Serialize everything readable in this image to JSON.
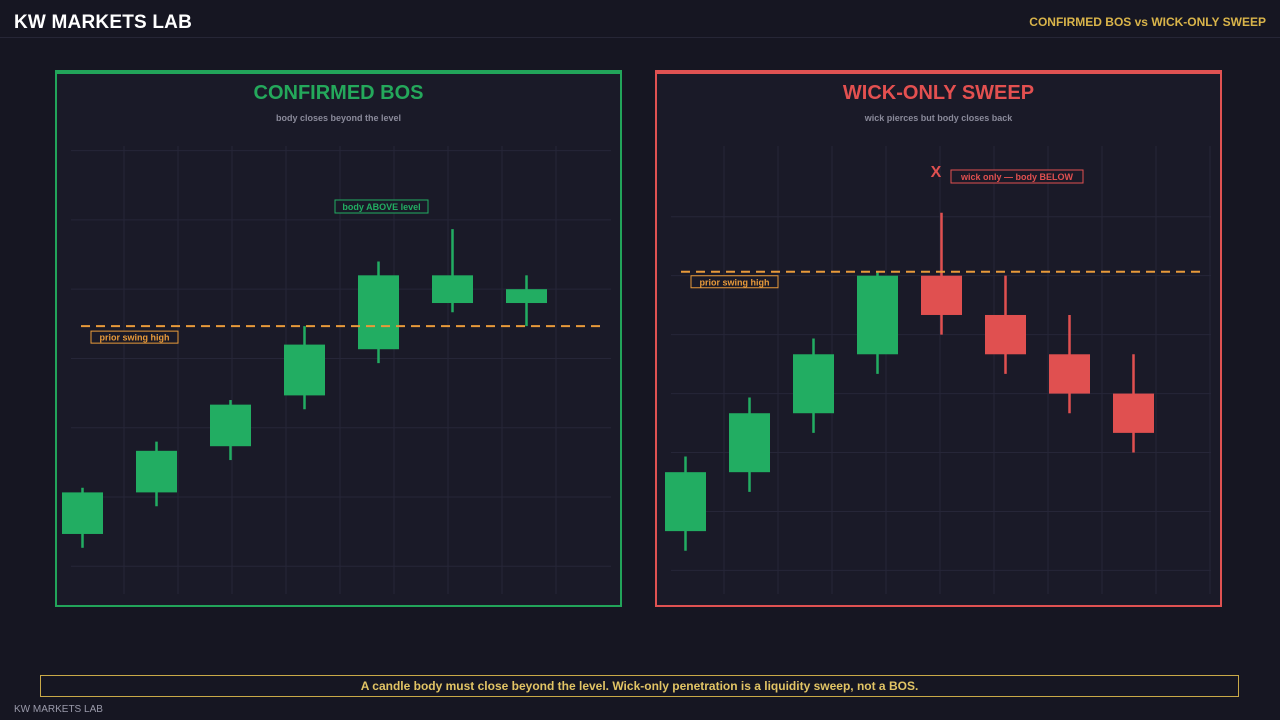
{
  "header": {
    "brand": "KW MARKETS LAB",
    "right_title": "CONFIRMED BOS vs WICK-ONLY SWEEP"
  },
  "colors": {
    "bull": "#22ad62",
    "bear": "#e05050",
    "level": "#e89a3a",
    "grid": "#262638",
    "background": "#161622"
  },
  "chart_data": [
    {
      "type": "candlestick",
      "title": "CONFIRMED BOS",
      "subtitle": "body closes beyond the level",
      "ylim": [
        0,
        100
      ],
      "level": {
        "value": 52,
        "label": "prior swing high"
      },
      "annotations": [
        {
          "text": "body ABOVE level",
          "style": "bull"
        }
      ],
      "candles": [
        {
          "open": 7,
          "high": 17,
          "low": 4,
          "close": 16
        },
        {
          "open": 16,
          "high": 27,
          "low": 13,
          "close": 25
        },
        {
          "open": 26,
          "high": 36,
          "low": 23,
          "close": 35
        },
        {
          "open": 37,
          "high": 52,
          "low": 34,
          "close": 48
        },
        {
          "open": 47,
          "high": 66,
          "low": 44,
          "close": 63
        },
        {
          "open": 57,
          "high": 73,
          "low": 55,
          "close": 63
        },
        {
          "open": 57,
          "high": 63,
          "low": 52,
          "close": 60
        }
      ]
    },
    {
      "type": "candlestick",
      "title": "WICK-ONLY SWEEP",
      "subtitle": "wick pierces but body closes back",
      "ylim": [
        0,
        100
      ],
      "level": {
        "value": 76,
        "label": "prior swing high"
      },
      "annotations": [
        {
          "text": "X",
          "style": "marker"
        },
        {
          "text": "wick only — body BELOW",
          "style": "bear"
        }
      ],
      "candles": [
        {
          "open": 10,
          "high": 29,
          "low": 5,
          "close": 25
        },
        {
          "open": 25,
          "high": 44,
          "low": 20,
          "close": 40
        },
        {
          "open": 40,
          "high": 59,
          "low": 35,
          "close": 55
        },
        {
          "open": 55,
          "high": 76,
          "low": 50,
          "close": 75
        },
        {
          "open": 75,
          "high": 91,
          "low": 60,
          "close": 65
        },
        {
          "open": 65,
          "high": 75,
          "low": 50,
          "close": 55
        },
        {
          "open": 55,
          "high": 65,
          "low": 40,
          "close": 45
        },
        {
          "open": 45,
          "high": 55,
          "low": 30,
          "close": 35
        }
      ]
    }
  ],
  "footer": {
    "message": "A candle body must close beyond the level. Wick-only penetration is a liquidity sweep, not a BOS.",
    "brand": "KW MARKETS LAB"
  }
}
